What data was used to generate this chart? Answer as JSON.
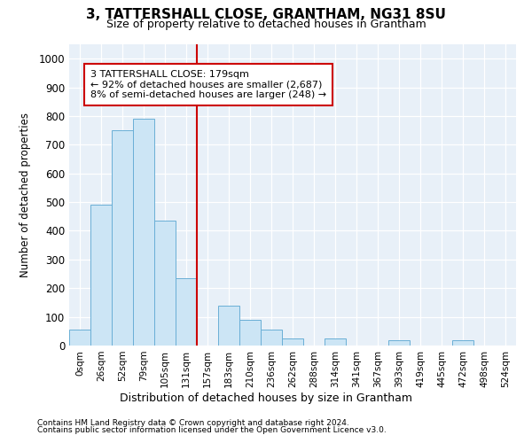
{
  "title": "3, TATTERSHALL CLOSE, GRANTHAM, NG31 8SU",
  "subtitle": "Size of property relative to detached houses in Grantham",
  "xlabel": "Distribution of detached houses by size in Grantham",
  "ylabel": "Number of detached properties",
  "bar_color": "#cce5f5",
  "bar_edge_color": "#6aafd6",
  "background_color": "#e8f0f8",
  "grid_color": "#ffffff",
  "vline_color": "#cc0000",
  "vline_x_idx": 6,
  "annotation_text": "3 TATTERSHALL CLOSE: 179sqm\n← 92% of detached houses are smaller (2,687)\n8% of semi-detached houses are larger (248) →",
  "categories": [
    "0sqm",
    "26sqm",
    "52sqm",
    "79sqm",
    "105sqm",
    "131sqm",
    "157sqm",
    "183sqm",
    "210sqm",
    "236sqm",
    "262sqm",
    "288sqm",
    "314sqm",
    "341sqm",
    "367sqm",
    "393sqm",
    "419sqm",
    "445sqm",
    "472sqm",
    "498sqm",
    "524sqm"
  ],
  "bar_heights": [
    55,
    490,
    750,
    790,
    435,
    235,
    0,
    140,
    90,
    55,
    25,
    0,
    25,
    0,
    0,
    20,
    0,
    0,
    20,
    0,
    0
  ],
  "ylim": [
    0,
    1050
  ],
  "yticks": [
    0,
    100,
    200,
    300,
    400,
    500,
    600,
    700,
    800,
    900,
    1000
  ],
  "footnote1": "Contains HM Land Registry data © Crown copyright and database right 2024.",
  "footnote2": "Contains public sector information licensed under the Open Government Licence v3.0."
}
